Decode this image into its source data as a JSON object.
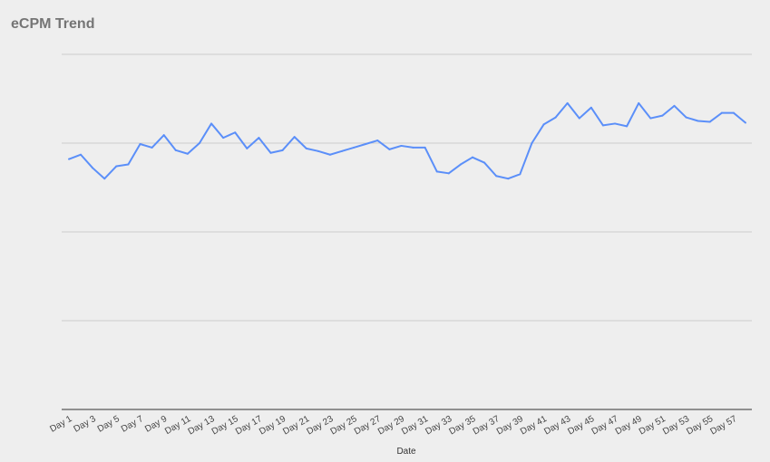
{
  "chart_data": {
    "type": "line",
    "title": "eCPM Trend",
    "xlabel": "Date",
    "ylabel": "",
    "x": [
      "Day 1",
      "Day 2",
      "Day 3",
      "Day 4",
      "Day 5",
      "Day 6",
      "Day 7",
      "Day 8",
      "Day 9",
      "Day 10",
      "Day 11",
      "Day 12",
      "Day 13",
      "Day 14",
      "Day 15",
      "Day 16",
      "Day 17",
      "Day 18",
      "Day 19",
      "Day 20",
      "Day 21",
      "Day 22",
      "Day 23",
      "Day 24",
      "Day 25",
      "Day 26",
      "Day 27",
      "Day 28",
      "Day 29",
      "Day 30",
      "Day 31",
      "Day 32",
      "Day 33",
      "Day 34",
      "Day 35",
      "Day 36",
      "Day 37",
      "Day 38",
      "Day 39",
      "Day 40",
      "Day 41",
      "Day 42",
      "Day 43",
      "Day 44",
      "Day 45",
      "Day 46",
      "Day 47",
      "Day 48",
      "Day 49",
      "Day 50",
      "Day 51",
      "Day 52",
      "Day 53",
      "Day 54",
      "Day 55",
      "Day 56",
      "Day 57",
      "Day 58"
    ],
    "xtick_labels": [
      "Day 1",
      "Day 3",
      "Day 5",
      "Day 7",
      "Day 9",
      "Day 11",
      "Day 13",
      "Day 15",
      "Day 17",
      "Day 19",
      "Day 21",
      "Day 23",
      "Day 25",
      "Day 27",
      "Day 29",
      "Day 31",
      "Day 33",
      "Day 35",
      "Day 37",
      "Day 39",
      "Day 41",
      "Day 43",
      "Day 45",
      "Day 47",
      "Day 49",
      "Day 51",
      "Day 53",
      "Day 55",
      "Day 57"
    ],
    "values": [
      2.82,
      2.87,
      2.72,
      2.6,
      2.74,
      2.76,
      2.99,
      2.95,
      3.09,
      2.92,
      2.88,
      3.0,
      3.22,
      3.06,
      3.12,
      2.94,
      3.06,
      2.89,
      2.92,
      3.07,
      2.94,
      2.91,
      2.87,
      2.91,
      2.95,
      2.99,
      3.03,
      2.93,
      2.97,
      2.95,
      2.95,
      2.68,
      2.66,
      2.76,
      2.84,
      2.78,
      2.63,
      2.6,
      2.65,
      3.0,
      3.21,
      3.29,
      3.45,
      3.28,
      3.4,
      3.2,
      3.22,
      3.19,
      3.45,
      3.28,
      3.31,
      3.42,
      3.29,
      3.25,
      3.24,
      3.34,
      3.34,
      3.23
    ],
    "ylim": [
      0,
      4
    ],
    "y_gridlines": [
      1,
      2,
      3,
      4
    ],
    "y_tick_labels_shown": false,
    "grid": true,
    "legend": "none",
    "colors": {
      "line": "#5b8ff9",
      "grid": "#cccccc",
      "axis": "#333333",
      "background": "#eeeeee",
      "title": "#757575"
    }
  }
}
